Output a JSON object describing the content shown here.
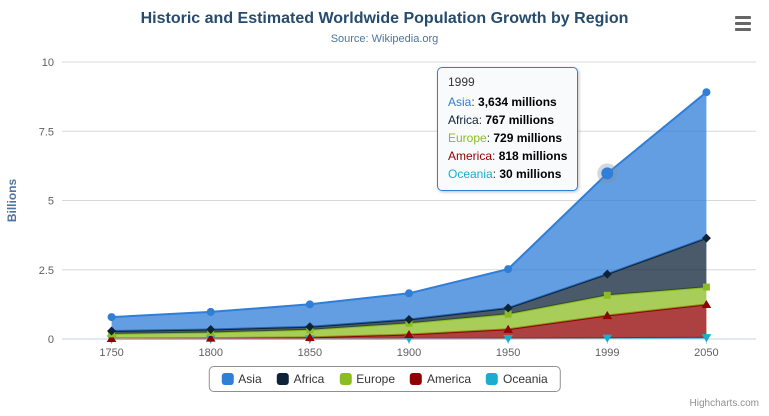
{
  "header": {
    "title": "Historic and Estimated Worldwide Population Growth by Region",
    "subtitle": "Source: Wikipedia.org"
  },
  "credits": "Highcharts.com",
  "chart_data": {
    "type": "area",
    "stacking": "normal",
    "title": "Historic and Estimated Worldwide Population Growth by Region",
    "subtitle": "Source: Wikipedia.org",
    "categories": [
      "1750",
      "1800",
      "1850",
      "1900",
      "1950",
      "1999",
      "2050"
    ],
    "unit": "millions",
    "xlabel": "",
    "ylabel": "Billions",
    "ylim": [
      0,
      10
    ],
    "yticks": [
      0,
      2.5,
      5,
      7.5,
      10
    ],
    "grid": true,
    "legend_position": "bottom",
    "series": [
      {
        "name": "Asia",
        "color": "#2f7ed8",
        "marker": "circle",
        "values": [
          502,
          635,
          809,
          947,
          1402,
          3634,
          5268
        ]
      },
      {
        "name": "Africa",
        "color": "#0d233a",
        "marker": "diamond",
        "values": [
          106,
          107,
          111,
          133,
          221,
          767,
          1766
        ]
      },
      {
        "name": "Europe",
        "color": "#8bbc21",
        "marker": "square",
        "values": [
          163,
          203,
          276,
          408,
          547,
          729,
          628
        ]
      },
      {
        "name": "America",
        "color": "#910000",
        "marker": "triangle",
        "values": [
          18,
          31,
          54,
          156,
          339,
          818,
          1201
        ]
      },
      {
        "name": "Oceania",
        "color": "#1aadce",
        "marker": "triangle-down",
        "values": [
          2,
          2,
          2,
          6,
          13,
          30,
          46
        ]
      }
    ],
    "stack_bottom_to_top": [
      "Oceania",
      "America",
      "Europe",
      "Africa",
      "Asia"
    ],
    "hover_point": {
      "series": "Asia",
      "index": 5
    }
  },
  "tooltip": {
    "header": "1999",
    "suffix": " millions",
    "rows": [
      {
        "name": "Asia",
        "color": "#2f7ed8",
        "value": "3,634"
      },
      {
        "name": "Africa",
        "color": "#0d233a",
        "value": "767"
      },
      {
        "name": "Europe",
        "color": "#8bbc21",
        "value": "729"
      },
      {
        "name": "America",
        "color": "#910000",
        "value": "818"
      },
      {
        "name": "Oceania",
        "color": "#1aadce",
        "value": "30"
      }
    ]
  }
}
